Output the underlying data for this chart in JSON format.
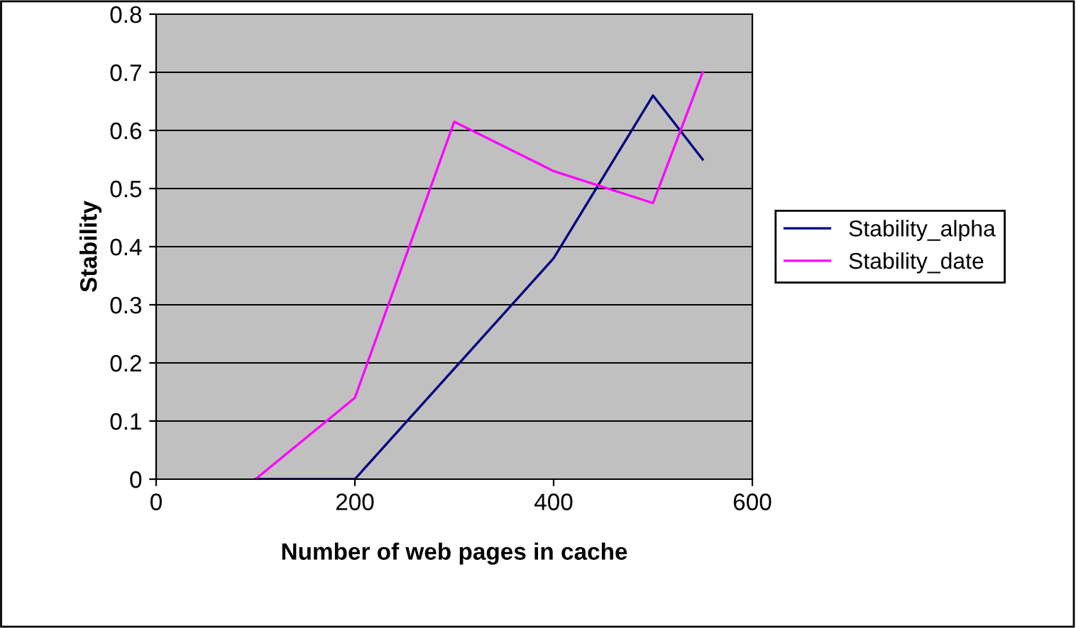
{
  "chart_data": {
    "type": "line",
    "xlabel": "Number of web pages in cache",
    "ylabel": "Stability",
    "series": [
      {
        "name": "Stability_alpha",
        "color": "#000080",
        "x": [
          100,
          200,
          300,
          400,
          500,
          550
        ],
        "values": [
          0,
          0,
          0.19,
          0.38,
          0.66,
          0.55
        ]
      },
      {
        "name": "Stability_date",
        "color": "#ff00ff",
        "x": [
          100,
          200,
          300,
          400,
          500,
          550
        ],
        "values": [
          0,
          0.14,
          0.615,
          0.53,
          0.475,
          0.7
        ]
      }
    ],
    "xlim": [
      0,
      600
    ],
    "xticks": [
      0,
      200,
      400,
      600
    ],
    "ylim": [
      0,
      0.8
    ],
    "yticks": [
      0,
      0.1,
      0.2,
      0.3,
      0.4,
      0.5,
      0.6,
      0.7,
      0.8
    ],
    "grid": "y",
    "legend": "right",
    "marker": "none",
    "line_style": "solid"
  }
}
